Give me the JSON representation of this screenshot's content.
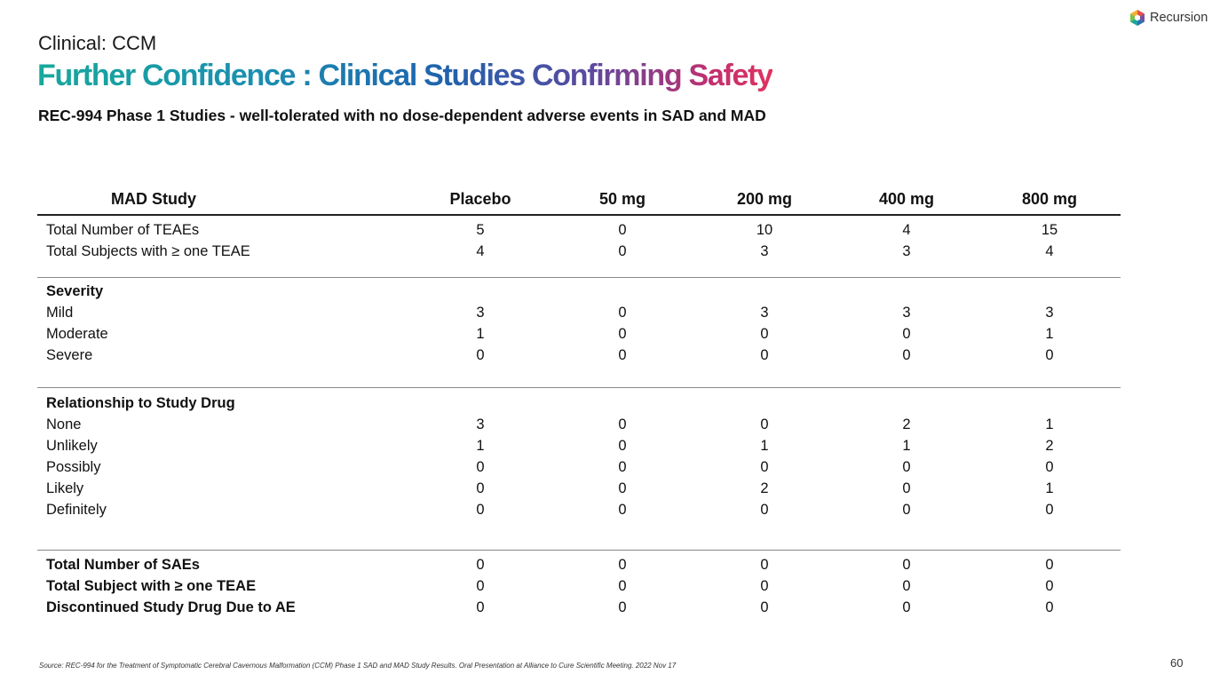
{
  "header": {
    "section": "Clinical: CCM",
    "title": "Further Confidence : Clinical Studies Confirming Safety",
    "subtitle": "REC-994 Phase 1 Studies - well-tolerated with no dose-dependent adverse events in SAD and MAD",
    "logo": "Recursion"
  },
  "table": {
    "columns": [
      "MAD Study",
      "Placebo",
      "50 mg",
      "200 mg",
      "400 mg",
      "800 mg"
    ],
    "groups": [
      {
        "rows": [
          {
            "label": "Total Number of TEAEs",
            "values": [
              5,
              0,
              10,
              4,
              15
            ]
          },
          {
            "label": "Total Subjects with ≥ one TEAE",
            "values": [
              4,
              0,
              3,
              3,
              4
            ]
          }
        ]
      },
      {
        "heading": "Severity",
        "rows": [
          {
            "label": "Mild",
            "values": [
              3,
              0,
              3,
              3,
              3
            ]
          },
          {
            "label": "Moderate",
            "values": [
              1,
              0,
              0,
              0,
              1
            ]
          },
          {
            "label": "Severe",
            "values": [
              0,
              0,
              0,
              0,
              0
            ]
          }
        ]
      },
      {
        "heading": "Relationship to Study Drug",
        "rows": [
          {
            "label": "None",
            "values": [
              3,
              0,
              0,
              2,
              1
            ]
          },
          {
            "label": "Unlikely",
            "values": [
              1,
              0,
              1,
              1,
              2
            ]
          },
          {
            "label": "Possibly",
            "values": [
              0,
              0,
              0,
              0,
              0
            ]
          },
          {
            "label": "Likely",
            "values": [
              0,
              0,
              2,
              0,
              1
            ]
          },
          {
            "label": "Definitely",
            "values": [
              0,
              0,
              0,
              0,
              0
            ]
          }
        ]
      },
      {
        "bold": true,
        "rows": [
          {
            "label": "Total Number of SAEs",
            "values": [
              0,
              0,
              0,
              0,
              0
            ]
          },
          {
            "label": "Total Subject with ≥ one TEAE",
            "values": [
              0,
              0,
              0,
              0,
              0
            ]
          },
          {
            "label": "Discontinued Study Drug Due to AE",
            "values": [
              0,
              0,
              0,
              0,
              0
            ]
          }
        ]
      }
    ]
  },
  "footer": {
    "source": "Source: REC-994 for the Treatment of Symptomatic Cerebral Cavernous Malformation (CCM) Phase 1 SAD and MAD Study Results. Oral Presentation at Alliance to Cure Scientific Meeting. 2022 Nov 17",
    "page": 60
  }
}
